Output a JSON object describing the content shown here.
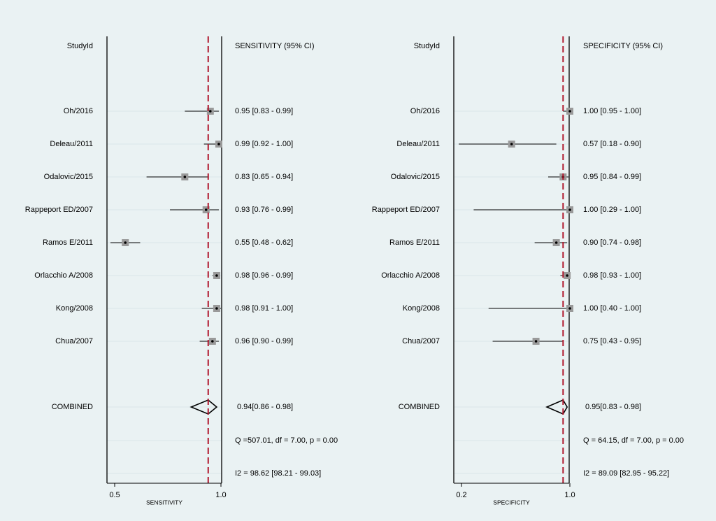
{
  "colors": {
    "background": "#eaf2f3",
    "panel_border": "#000000",
    "row_line": "#d9e6e8",
    "marker": "#9a9a9a",
    "reference_line": "#b0182e"
  },
  "chart_data": [
    {
      "type": "forest",
      "measure": "SENSITIVITY",
      "header_study": "StudyId",
      "header_estimate": "SENSITIVITY (95% CI)",
      "xlabel": "SENSITIVITY",
      "xlim": [
        0.44,
        1.06
      ],
      "xticks": [
        0.5,
        1.0
      ],
      "xtick_labels": [
        "0.5",
        "1.0"
      ],
      "reference_line": 0.94,
      "studies": [
        {
          "label": "Oh/2016",
          "est": 0.95,
          "lo": 0.83,
          "hi": 0.99,
          "text": "0.95 [0.83 - 0.99]"
        },
        {
          "label": "Deleau/2011",
          "est": 0.99,
          "lo": 0.92,
          "hi": 1.0,
          "text": "0.99 [0.92 - 1.00]"
        },
        {
          "label": "Odalovic/2015",
          "est": 0.83,
          "lo": 0.65,
          "hi": 0.94,
          "text": "0.83 [0.65 - 0.94]"
        },
        {
          "label": "Rappeport ED/2007",
          "est": 0.93,
          "lo": 0.76,
          "hi": 0.99,
          "text": "0.93 [0.76 - 0.99]"
        },
        {
          "label": "Ramos E/2011",
          "est": 0.55,
          "lo": 0.48,
          "hi": 0.62,
          "text": "0.55 [0.48 - 0.62]"
        },
        {
          "label": "Orlacchio A/2008",
          "est": 0.98,
          "lo": 0.96,
          "hi": 0.99,
          "text": "0.98 [0.96 - 0.99]"
        },
        {
          "label": "Kong/2008",
          "est": 0.98,
          "lo": 0.91,
          "hi": 1.0,
          "text": "0.98 [0.91 - 1.00]"
        },
        {
          "label": "Chua/2007",
          "est": 0.96,
          "lo": 0.9,
          "hi": 0.99,
          "text": "0.96 [0.90 - 0.99]"
        }
      ],
      "combined": {
        "label": "COMBINED",
        "est": 0.94,
        "lo": 0.86,
        "hi": 0.98,
        "text": "0.94[0.86 - 0.98]"
      },
      "heterogeneity_q": "Q =507.01, df = 7.00, p =  0.00",
      "heterogeneity_i2": "I2 = 98.62 [98.21 - 99.03]"
    },
    {
      "type": "forest",
      "measure": "SPECIFICITY",
      "header_study": "StudyId",
      "header_estimate": "SPECIFICITY (95% CI)",
      "xlabel": "SPECIFICITY",
      "xlim": [
        0.15,
        1.06
      ],
      "xticks": [
        0.2,
        1.0
      ],
      "xtick_labels": [
        "0.2",
        "1.0"
      ],
      "reference_line": 0.95,
      "studies": [
        {
          "label": "Oh/2016",
          "est": 1.0,
          "lo": 0.95,
          "hi": 1.0,
          "text": "1.00 [0.95 - 1.00]"
        },
        {
          "label": "Deleau/2011",
          "est": 0.57,
          "lo": 0.18,
          "hi": 0.9,
          "text": "0.57 [0.18 - 0.90]"
        },
        {
          "label": "Odalovic/2015",
          "est": 0.95,
          "lo": 0.84,
          "hi": 0.99,
          "text": "0.95 [0.84 - 0.99]"
        },
        {
          "label": "Rappeport ED/2007",
          "est": 1.0,
          "lo": 0.29,
          "hi": 1.0,
          "text": "1.00 [0.29 - 1.00]"
        },
        {
          "label": "Ramos E/2011",
          "est": 0.9,
          "lo": 0.74,
          "hi": 0.98,
          "text": "0.90 [0.74 - 0.98]"
        },
        {
          "label": "Orlacchio A/2008",
          "est": 0.98,
          "lo": 0.93,
          "hi": 1.0,
          "text": "0.98 [0.93 - 1.00]"
        },
        {
          "label": "Kong/2008",
          "est": 1.0,
          "lo": 0.4,
          "hi": 1.0,
          "text": "1.00 [0.40 - 1.00]"
        },
        {
          "label": "Chua/2007",
          "est": 0.75,
          "lo": 0.43,
          "hi": 0.95,
          "text": "0.75 [0.43 - 0.95]"
        }
      ],
      "combined": {
        "label": "COMBINED",
        "est": 0.95,
        "lo": 0.83,
        "hi": 0.98,
        "text": "0.95[0.83 - 0.98]"
      },
      "heterogeneity_q": "Q = 64.15, df = 7.00, p =  0.00",
      "heterogeneity_i2": "I2 = 89.09 [82.95 - 95.22]"
    }
  ]
}
